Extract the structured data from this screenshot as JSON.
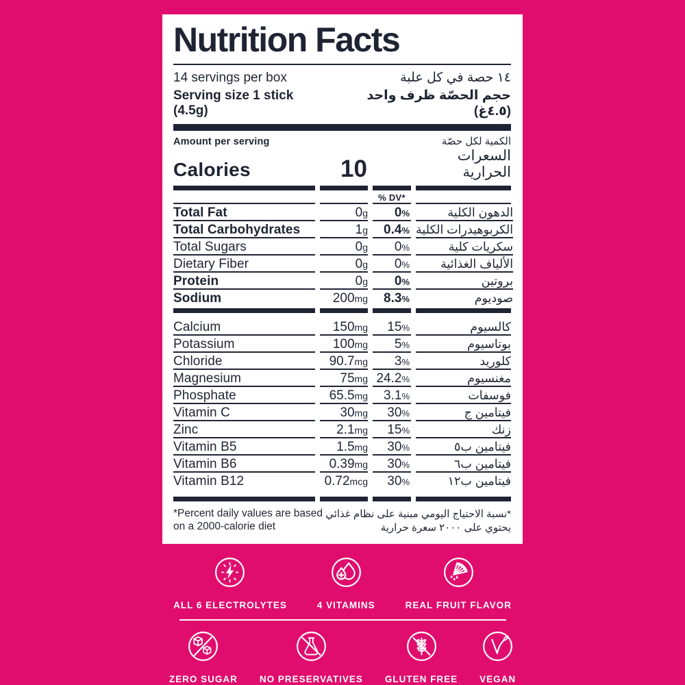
{
  "colors": {
    "background": "#E00D6E",
    "ink": "#1E2433",
    "label_bg": "#FFFFFF",
    "icon": "#FFFFFF"
  },
  "label": {
    "title": "Nutrition Facts",
    "servings": {
      "en": "14 servings per box",
      "ar": "١٤ حصة في كل علبة"
    },
    "serving_size": {
      "en": "Serving size 1 stick (4.5g)",
      "ar": "حجم الحصّة  ظرف واحد (٤.٥غ)"
    },
    "amount_per_serving": {
      "en": "Amount per serving",
      "ar": "الكمية لكل حصّة"
    },
    "calories": {
      "en": "Calories",
      "value": "10",
      "ar": "السعرات الحرارية"
    },
    "dv_header": "% DV*",
    "percent_unit": "%",
    "nutrient_rows": [
      {
        "en": "Total Fat",
        "amount": "0",
        "unit": "g",
        "dv": "0",
        "ar": "الدهون الكلية",
        "bold": true
      },
      {
        "en": "Total Carbohydrates",
        "amount": "1",
        "unit": "g",
        "dv": "0.4",
        "ar": "الكربوهيدرات الكلية",
        "bold": true
      },
      {
        "en": "Total Sugars",
        "amount": "0",
        "unit": "g",
        "dv": "0",
        "ar": "سكريات كلية",
        "bold": false
      },
      {
        "en": "Dietary Fiber",
        "amount": "0",
        "unit": "g",
        "dv": "0",
        "ar": "الألياف الغذائية",
        "bold": false
      },
      {
        "en": "Protein",
        "amount": "0",
        "unit": "g",
        "dv": "0",
        "ar": "بروتين",
        "bold": true
      },
      {
        "en": "Sodium",
        "amount": "200",
        "unit": "mg",
        "dv": "8.3",
        "ar": "صوديوم",
        "bold": true
      }
    ],
    "mineral_rows": [
      {
        "en": "Calcium",
        "amount": "150",
        "unit": "mg",
        "dv": "15",
        "ar": "كالسيوم",
        "bold": false
      },
      {
        "en": "Potassium",
        "amount": "100",
        "unit": "mg",
        "dv": "5",
        "ar": "بوتاسيوم",
        "bold": false
      },
      {
        "en": "Chloride",
        "amount": "90.7",
        "unit": "mg",
        "dv": "3",
        "ar": "كلوريد",
        "bold": false
      },
      {
        "en": "Magnesium",
        "amount": "75",
        "unit": "mg",
        "dv": "24.2",
        "ar": "مغنسيوم",
        "bold": false
      },
      {
        "en": "Phosphate",
        "amount": "65.5",
        "unit": "mg",
        "dv": "3.1",
        "ar": "فوسفات",
        "bold": false
      },
      {
        "en": "Vitamin C",
        "amount": "30",
        "unit": "mg",
        "dv": "30",
        "ar": "فيتامين ج",
        "bold": false
      },
      {
        "en": "Zinc",
        "amount": "2.1",
        "unit": "mg",
        "dv": "15",
        "ar": "زنك",
        "bold": false
      },
      {
        "en": "Vitamin B5",
        "amount": "1.5",
        "unit": "mg",
        "dv": "30",
        "ar": "فيتامين ب٥",
        "bold": false
      },
      {
        "en": "Vitamin B6",
        "amount": "0.39",
        "unit": "mg",
        "dv": "30",
        "ar": "فيتامين ب٦",
        "bold": false
      },
      {
        "en": "Vitamin B12",
        "amount": "0.72",
        "unit": "mcg",
        "dv": "30",
        "ar": "فيتامين ب١٢",
        "bold": false
      }
    ],
    "footnote": {
      "en_line1": "*Percent daily values are based",
      "en_line2": "on a 2000-calorie diet",
      "ar_line1": "*نسبة الاحتياج اليومي مبنية على نظام غذائي",
      "ar_line2": "يحتوي على ٢٠٠٠ سعرة حرارية"
    }
  },
  "badges": {
    "row1": [
      {
        "icon": "electrolytes-icon",
        "label": "ALL 6 ELECTROLYTES"
      },
      {
        "icon": "vitamins-icon",
        "label": "4 VITAMINS"
      },
      {
        "icon": "fruit-flavor-icon",
        "label": "REAL FRUIT FLAVOR"
      }
    ],
    "row2": [
      {
        "icon": "zero-sugar-icon",
        "label": "ZERO SUGAR"
      },
      {
        "icon": "no-preservatives-icon",
        "label": "NO PRESERVATIVES"
      },
      {
        "icon": "gluten-free-icon",
        "label": "GLUTEN FREE"
      },
      {
        "icon": "vegan-icon",
        "label": "VEGAN"
      }
    ]
  }
}
